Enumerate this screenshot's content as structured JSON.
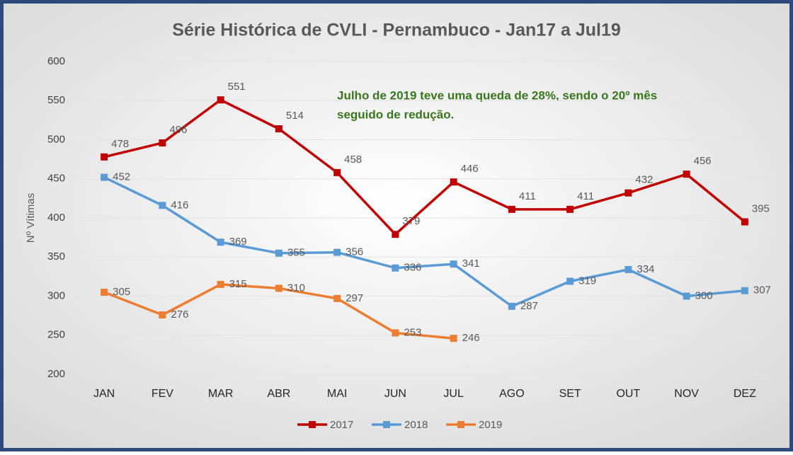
{
  "chart_data": {
    "type": "line",
    "title": "Série Histórica de CVLI - Pernambuco - Jan17 a Jul19",
    "y_label": "Nº Vítimas",
    "annotation": [
      "Julho de 2019 teve uma queda de 28%, sendo o 20º mês",
      "seguido de redução."
    ],
    "categories": [
      "JAN",
      "FEV",
      "MAR",
      "ABR",
      "MAI",
      "JUN",
      "JUL",
      "AGO",
      "SET",
      "OUT",
      "NOV",
      "DEZ"
    ],
    "series": [
      {
        "name": "2017",
        "color": "#c00000",
        "values": [
          478,
          496,
          551,
          514,
          458,
          379,
          446,
          411,
          411,
          432,
          456,
          395
        ]
      },
      {
        "name": "2018",
        "color": "#5b9bd5",
        "values": [
          452,
          416,
          369,
          355,
          356,
          336,
          341,
          287,
          319,
          334,
          300,
          307
        ]
      },
      {
        "name": "2019",
        "color": "#ed7d31",
        "values": [
          305,
          276,
          315,
          310,
          297,
          253,
          246,
          null,
          null,
          null,
          null,
          null
        ]
      }
    ],
    "ylim": [
      200,
      600
    ],
    "yticks": [
      200,
      250,
      300,
      350,
      400,
      450,
      500,
      550,
      600
    ],
    "grid": true,
    "legend": "bottom"
  }
}
